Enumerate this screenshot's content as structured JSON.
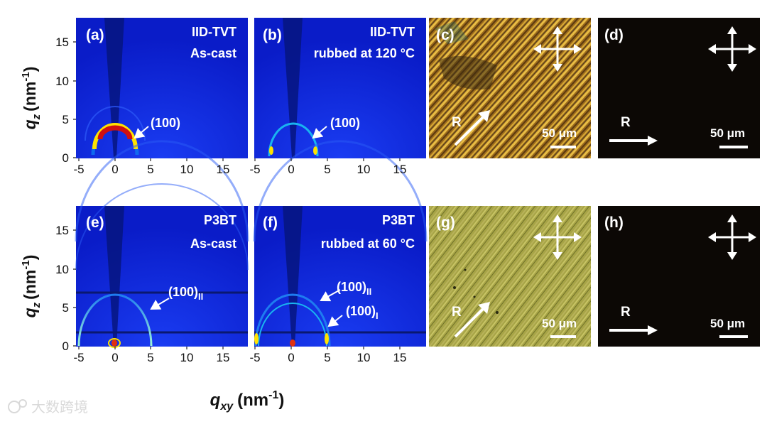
{
  "panels": {
    "a": {
      "label": "(a)",
      "material": "IID-TVT",
      "condition": "As-cast",
      "peaks": [
        "(100)"
      ]
    },
    "b": {
      "label": "(b)",
      "material": "IID-TVT",
      "condition": "rubbed at 120 °C",
      "peaks": [
        "(100)"
      ]
    },
    "c": {
      "label": "(c)",
      "direction": "R",
      "scalebar": "50 μm"
    },
    "d": {
      "label": "(d)",
      "direction": "R",
      "scalebar": "50 μm"
    },
    "e": {
      "label": "(e)",
      "material": "P3BT",
      "condition": "As-cast",
      "peak_main": "(100)",
      "peak_sub": "II"
    },
    "f": {
      "label": "(f)",
      "material": "P3BT",
      "condition": "rubbed at 60 °C",
      "peak1_main": "(100)",
      "peak1_sub": "II",
      "peak2_main": "(100)",
      "peak2_sub": "I"
    },
    "g": {
      "label": "(g)",
      "direction": "R",
      "scalebar": "50 μm"
    },
    "h": {
      "label": "(h)",
      "direction": "R",
      "scalebar": "50 μm"
    }
  },
  "axes": {
    "y_label_main": "q",
    "y_label_sub": "z",
    "y_label_unit": "(nm",
    "y_label_exp": "-1",
    "y_label_close": ")",
    "x_label_main": "q",
    "x_label_sub": "xy",
    "x_label_unit": "(nm",
    "x_label_exp": "-1",
    "x_label_close": ")",
    "y_ticks": [
      "15",
      "10",
      "5",
      "0"
    ],
    "x_ticks": [
      "-5",
      "0",
      "5",
      "10",
      "15"
    ]
  },
  "watermark": "大数跨境",
  "colors": {
    "giwaxs_background": "#0b1fd6",
    "giwaxs_shadow": "#06157f",
    "pom_bright": "#c89a2a",
    "pom_green": "#a8a844",
    "pom_dark": "#0c0805"
  }
}
